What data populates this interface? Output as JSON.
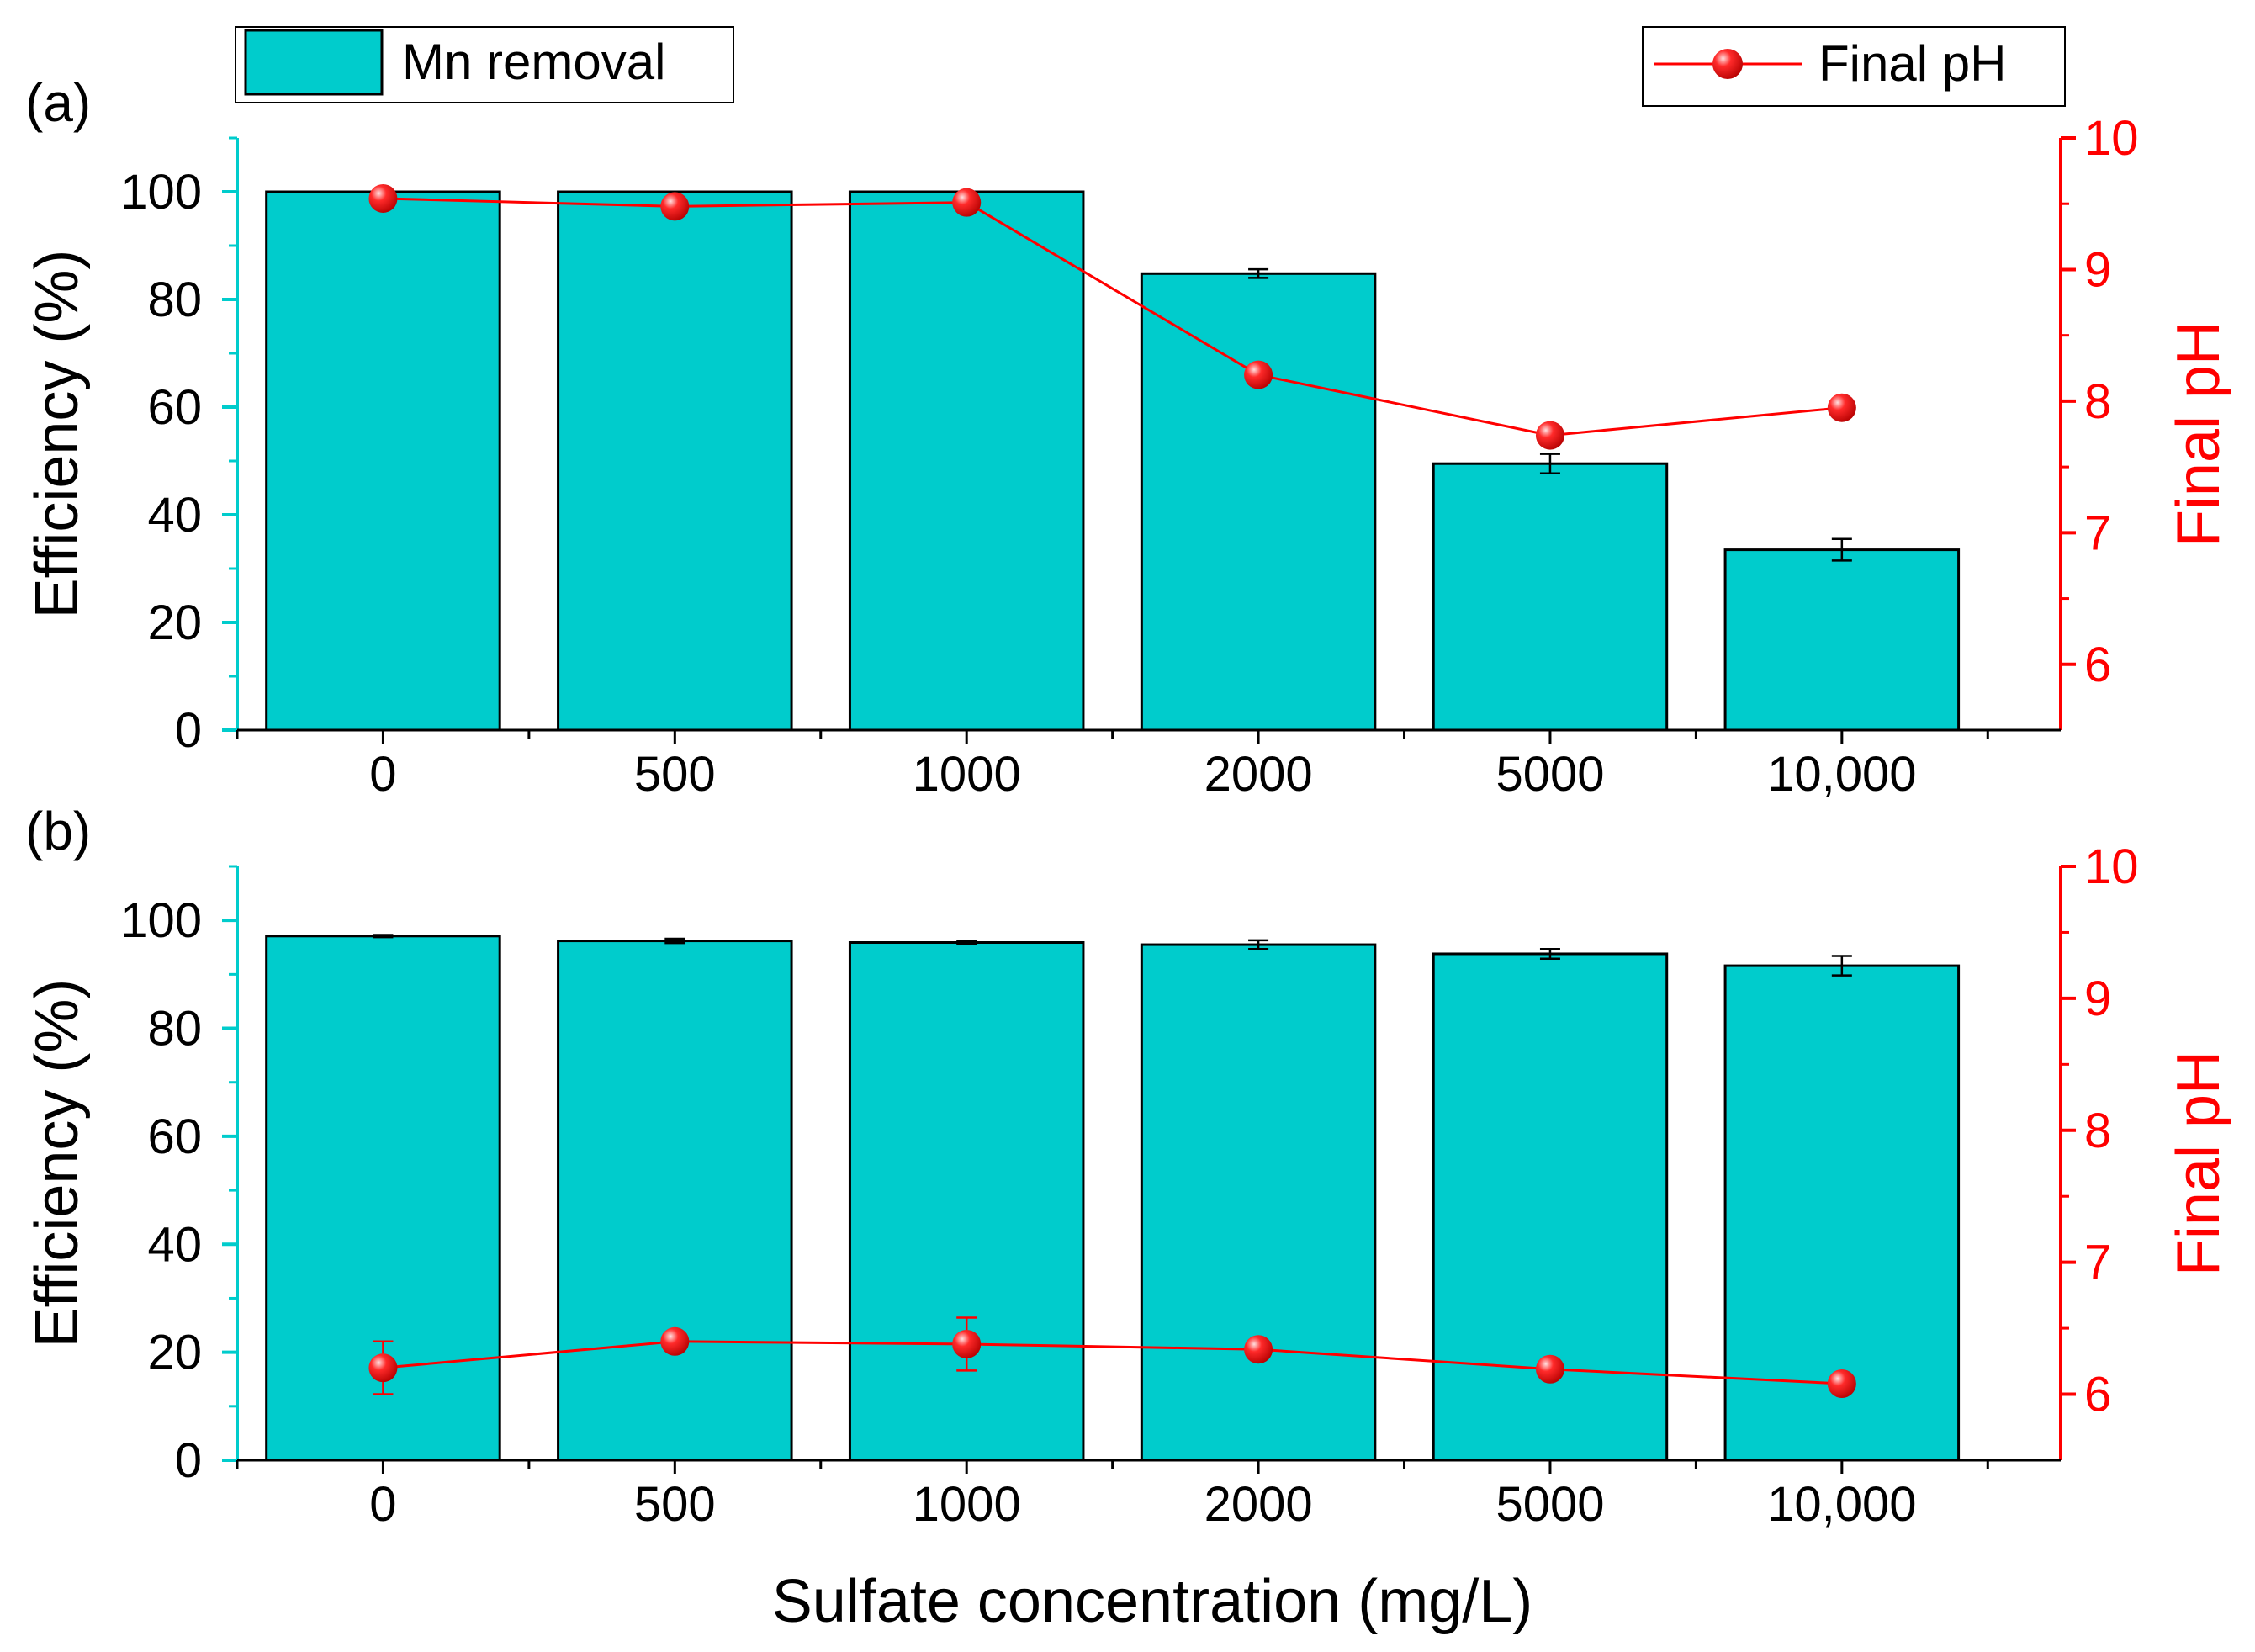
{
  "figure": {
    "xlabel": "Sulfate concentration (mg/L)",
    "legend": {
      "bar_label": "Mn removal",
      "line_label": "Final pH"
    }
  },
  "colors": {
    "bar": "#00CCCC",
    "left_axis": "#00CCCC",
    "line": "#FF0000",
    "text": "#000000"
  },
  "chart_data": [
    {
      "panel": "(a)",
      "type": "bar",
      "categories": [
        "0",
        "500",
        "1000",
        "2000",
        "5000",
        "10,000"
      ],
      "series": [
        {
          "name": "Mn removal",
          "axis": "left",
          "values": [
            100,
            100,
            100,
            84.8,
            49.5,
            33.5
          ],
          "errors": [
            0,
            0,
            0,
            0.8,
            1.8,
            2.0
          ]
        },
        {
          "name": "Final pH",
          "axis": "right",
          "type": "line",
          "values": [
            9.54,
            9.48,
            9.51,
            8.2,
            7.74,
            7.95
          ],
          "errors": [
            0.05,
            0.04,
            0.04,
            0.04,
            0.04,
            0.04
          ]
        }
      ],
      "ylabel": "Efficiency (%)",
      "y2label": "Final pH",
      "ylim": [
        0,
        110
      ],
      "y2lim": [
        5.5,
        10
      ],
      "yticks": [
        0,
        20,
        40,
        60,
        80,
        100
      ],
      "y2ticks": [
        6,
        7,
        8,
        9,
        10
      ]
    },
    {
      "panel": "(b)",
      "type": "bar",
      "categories": [
        "0",
        "500",
        "1000",
        "2000",
        "5000",
        "10,000"
      ],
      "series": [
        {
          "name": "Mn removal",
          "axis": "left",
          "values": [
            97.1,
            96.2,
            95.9,
            95.5,
            93.8,
            91.6
          ],
          "errors": [
            0.2,
            0.4,
            0.3,
            0.8,
            0.9,
            1.8
          ]
        },
        {
          "name": "Final pH",
          "axis": "right",
          "type": "line",
          "values": [
            6.2,
            6.4,
            6.38,
            6.34,
            6.19,
            6.08
          ],
          "errors": [
            0.2,
            0.05,
            0.2,
            0.05,
            0.05,
            0.05
          ]
        }
      ],
      "ylabel": "Efficiency (%)",
      "y2label": "Final pH",
      "ylim": [
        0,
        110
      ],
      "y2lim": [
        5.5,
        10
      ],
      "yticks": [
        0,
        20,
        40,
        60,
        80,
        100
      ],
      "y2ticks": [
        6,
        7,
        8,
        9,
        10
      ]
    }
  ]
}
